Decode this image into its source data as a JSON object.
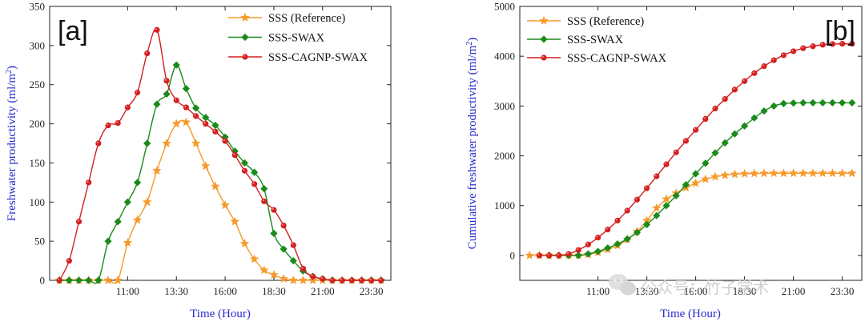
{
  "chart_data": [
    {
      "type": "line",
      "panel_label": "[a]",
      "xlabel": "Time (Hour)",
      "ylabel": "Freshwater productivity (ml/m²)",
      "ylabel_parts": [
        "Freshwater productivity (ml/m",
        "2",
        ")"
      ],
      "xlim": [
        7.0,
        24.5
      ],
      "ylim": [
        0,
        350
      ],
      "x_ticks": [
        11.0,
        13.5,
        16.0,
        18.5,
        21.0,
        23.5
      ],
      "x_tick_labels": [
        "11:00",
        "13:30",
        "16:00",
        "18:30",
        "21:00",
        "23:30"
      ],
      "y_ticks": [
        0,
        50,
        100,
        150,
        200,
        250,
        300,
        350
      ],
      "y_tick_labels": [
        "0",
        "50",
        "100",
        "150",
        "200",
        "250",
        "300",
        "350"
      ],
      "legend_position": "top-right",
      "grid": false,
      "series": [
        {
          "name": "SSS (Reference)",
          "color": "#f59a2c",
          "marker": "star",
          "x": [
            7.5,
            8.0,
            8.5,
            9.0,
            9.5,
            10.0,
            10.5,
            11.0,
            11.5,
            12.0,
            12.5,
            13.0,
            13.5,
            14.0,
            14.5,
            15.0,
            15.5,
            16.0,
            16.5,
            17.0,
            17.5,
            18.0,
            18.5,
            19.0,
            19.5,
            20.0,
            20.5,
            21.0,
            21.5,
            22.0,
            22.5,
            23.0,
            23.5,
            24.0
          ],
          "y": [
            0,
            0,
            0,
            0,
            0,
            0,
            0,
            48,
            77,
            100,
            140,
            175,
            200,
            202,
            175,
            146,
            120,
            96,
            75,
            47,
            27,
            13,
            7,
            2,
            0,
            0,
            0,
            0,
            0,
            0,
            0,
            0,
            0,
            0
          ]
        },
        {
          "name": "SSS-SWAX",
          "color": "#1b8a1b",
          "marker": "diamond",
          "x": [
            7.5,
            8.0,
            8.5,
            9.0,
            9.5,
            10.0,
            10.5,
            11.0,
            11.5,
            12.0,
            12.5,
            13.0,
            13.5,
            14.0,
            14.5,
            15.0,
            15.5,
            16.0,
            16.5,
            17.0,
            17.5,
            18.0,
            18.5,
            19.0,
            19.5,
            20.0,
            20.5,
            21.0,
            21.5,
            22.0,
            22.5,
            23.0,
            23.5,
            24.0
          ],
          "y": [
            0,
            0,
            0,
            0,
            0,
            50,
            75,
            100,
            125,
            175,
            225,
            238,
            275,
            245,
            220,
            208,
            198,
            183,
            165,
            150,
            138,
            117,
            60,
            40,
            25,
            12,
            5,
            2,
            0,
            0,
            0,
            0,
            0,
            0
          ]
        },
        {
          "name": "SSS-CAGNP-SWAX",
          "color": "#d42020",
          "marker": "circle",
          "x": [
            7.5,
            8.0,
            8.5,
            9.0,
            9.5,
            10.0,
            10.5,
            11.0,
            11.5,
            12.0,
            12.5,
            13.0,
            13.5,
            14.0,
            14.5,
            15.0,
            15.5,
            16.0,
            16.5,
            17.0,
            17.5,
            18.0,
            18.5,
            19.0,
            19.5,
            20.0,
            20.5,
            21.0,
            21.5,
            22.0,
            22.5,
            23.0,
            23.5,
            24.0
          ],
          "y": [
            0,
            25,
            75,
            125,
            175,
            198,
            201,
            221,
            240,
            290,
            320,
            255,
            230,
            221,
            210,
            200,
            190,
            178,
            160,
            140,
            123,
            101,
            90,
            70,
            45,
            15,
            5,
            2,
            0,
            0,
            0,
            0,
            0,
            0
          ]
        }
      ]
    },
    {
      "type": "line",
      "panel_label": "[b]",
      "xlabel": "Time (Hour)",
      "ylabel": "Cumulative freshwater productivity (ml/m²)",
      "ylabel_parts": [
        "Cumulative freshwater productivity (ml/m",
        "2",
        ")"
      ],
      "xlim": [
        7.0,
        24.5
      ],
      "ylim": [
        -500,
        5000
      ],
      "x_ticks": [
        11.0,
        13.5,
        16.0,
        18.5,
        21.0,
        23.5
      ],
      "x_tick_labels": [
        "11:00",
        "13:30",
        "16:00",
        "18:30",
        "21:00",
        "23:30"
      ],
      "y_ticks": [
        0,
        1000,
        2000,
        3000,
        4000,
        5000
      ],
      "y_tick_labels": [
        "0",
        "1000",
        "2000",
        "3000",
        "4000",
        "5000"
      ],
      "legend_position": "top-left",
      "grid": false,
      "series": [
        {
          "name": "SSS (Reference)",
          "color": "#f59a2c",
          "marker": "star",
          "x": [
            7.5,
            8.0,
            8.5,
            9.0,
            9.5,
            10.0,
            10.5,
            11.0,
            11.5,
            12.0,
            12.5,
            13.0,
            13.5,
            14.0,
            14.5,
            15.0,
            15.5,
            16.0,
            16.5,
            17.0,
            17.5,
            18.0,
            18.5,
            19.0,
            19.5,
            20.0,
            20.5,
            21.0,
            21.5,
            22.0,
            22.5,
            23.0,
            23.5,
            24.0
          ],
          "y": [
            0,
            0,
            0,
            0,
            0,
            0,
            20,
            60,
            120,
            200,
            320,
            480,
            700,
            950,
            1130,
            1250,
            1360,
            1450,
            1530,
            1580,
            1610,
            1630,
            1640,
            1645,
            1648,
            1650,
            1650,
            1650,
            1650,
            1650,
            1650,
            1650,
            1650,
            1650
          ]
        },
        {
          "name": "SSS-SWAX",
          "color": "#1b8a1b",
          "marker": "diamond",
          "x": [
            8.5,
            9.0,
            9.5,
            10.0,
            10.5,
            11.0,
            11.5,
            12.0,
            12.5,
            13.0,
            13.5,
            14.0,
            14.5,
            15.0,
            15.5,
            16.0,
            16.5,
            17.0,
            17.5,
            18.0,
            18.5,
            19.0,
            19.5,
            20.0,
            20.5,
            21.0,
            21.5,
            22.0,
            22.5,
            23.0,
            23.5,
            24.0
          ],
          "y": [
            0,
            0,
            0,
            0,
            30,
            80,
            150,
            230,
            330,
            460,
            620,
            800,
            1000,
            1200,
            1420,
            1640,
            1850,
            2060,
            2260,
            2440,
            2600,
            2760,
            2900,
            3000,
            3050,
            3060,
            3065,
            3065,
            3065,
            3065,
            3065,
            3065
          ]
        },
        {
          "name": "SSS-CAGNP-SWAX",
          "color": "#d42020",
          "marker": "circle",
          "x": [
            8.0,
            8.5,
            9.0,
            9.5,
            10.0,
            10.5,
            11.0,
            11.5,
            12.0,
            12.5,
            13.0,
            13.5,
            14.0,
            14.5,
            15.0,
            15.5,
            16.0,
            16.5,
            17.0,
            17.5,
            18.0,
            18.5,
            19.0,
            19.5,
            20.0,
            20.5,
            21.0,
            21.5,
            22.0,
            22.5,
            23.0,
            23.5,
            24.0
          ],
          "y": [
            0,
            0,
            0,
            30,
            110,
            220,
            360,
            520,
            700,
            900,
            1120,
            1350,
            1590,
            1830,
            2070,
            2300,
            2520,
            2740,
            2950,
            3140,
            3330,
            3500,
            3660,
            3800,
            3920,
            4020,
            4100,
            4160,
            4200,
            4230,
            4245,
            4250,
            4250
          ]
        }
      ]
    }
  ],
  "watermark": {
    "text": "公众号：竹子学术"
  }
}
